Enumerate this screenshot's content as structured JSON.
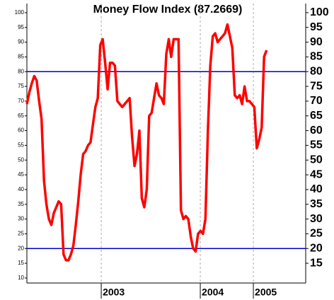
{
  "chart_data": {
    "type": "line",
    "title": "Money Flow Index (87.2669)",
    "series": [
      {
        "name": "Money Flow Index",
        "color": "#ff0000",
        "values": [
          69,
          73,
          76,
          78.5,
          77,
          70,
          64,
          43,
          35,
          30,
          28,
          32,
          34,
          36,
          35,
          18,
          16,
          16,
          18,
          21,
          28,
          36,
          45,
          52,
          53,
          55,
          56,
          62,
          68,
          71,
          89,
          91,
          83,
          74,
          83,
          83,
          82,
          70,
          69,
          68,
          69,
          70,
          71,
          58,
          48,
          52,
          60,
          37,
          34,
          40,
          65,
          66,
          71,
          76,
          72,
          71,
          69,
          86,
          91,
          85,
          91,
          91,
          91,
          33,
          30,
          31,
          30,
          24,
          20,
          19,
          25,
          26,
          25,
          30,
          60,
          82,
          92,
          93,
          90,
          91,
          92,
          93,
          96,
          92,
          88,
          72,
          71,
          72,
          69,
          75,
          70,
          70,
          69,
          68,
          54,
          57,
          61,
          85,
          87.2669
        ]
      }
    ],
    "xlim": [
      0,
      114
    ],
    "xticks": [
      {
        "value": 30.4,
        "label": "2003"
      },
      {
        "value": 70.9,
        "label": "2004"
      },
      {
        "value": 92.6,
        "label": "2005"
      }
    ],
    "ylim": [
      8.3,
      103.1
    ],
    "yticks": [
      10,
      15,
      20,
      25,
      30,
      35,
      40,
      45,
      50,
      55,
      60,
      65,
      70,
      75,
      80,
      85,
      90,
      95,
      100
    ],
    "y2lim": [
      8.3,
      103.1
    ],
    "y2ticks": [
      15,
      20,
      25,
      30,
      35,
      40,
      45,
      50,
      55,
      60,
      65,
      70,
      75,
      80,
      85,
      90,
      95,
      100
    ],
    "reference_lines": {
      "color": "#0000cc",
      "values": [
        80,
        20
      ]
    }
  }
}
